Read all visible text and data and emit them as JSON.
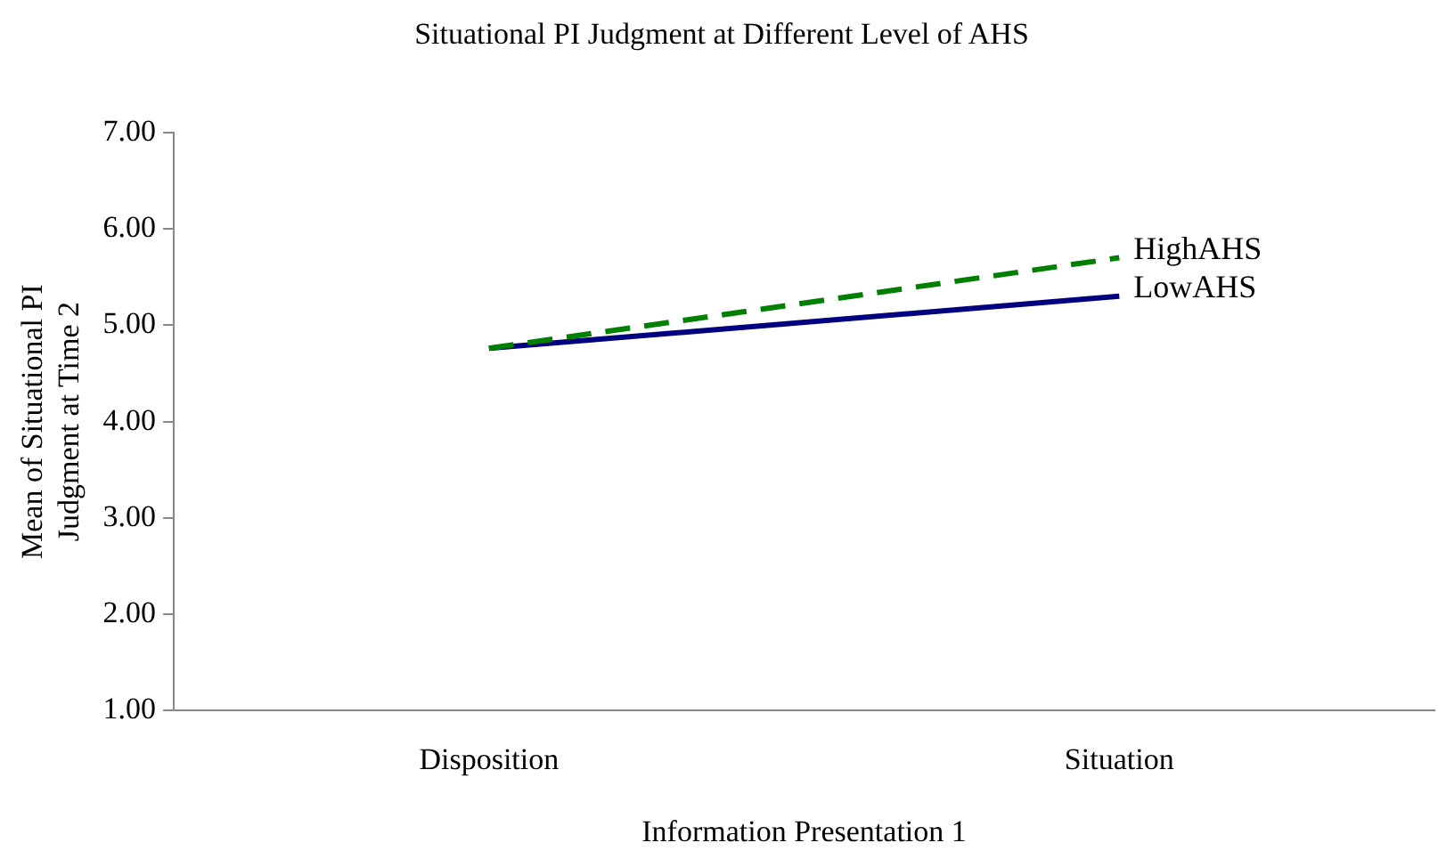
{
  "chart_data": {
    "type": "line",
    "title": "Situational PI Judgment at Different Level of AHS",
    "xlabel": "Information Presentation 1",
    "ylabel": "Mean of Situational PI Judgment at Time 2",
    "categories": [
      "Disposition",
      "Situation"
    ],
    "series": [
      {
        "name": "HighAHS",
        "color": "#008000",
        "values": [
          4.76,
          5.7
        ],
        "line_style": "dashed"
      },
      {
        "name": "LowAHS",
        "color": "#000080",
        "values": [
          4.76,
          5.3
        ],
        "line_style": "solid"
      }
    ],
    "ylim": [
      1,
      7
    ],
    "yticks": [
      {
        "value": 1,
        "label": "1.00"
      },
      {
        "value": 2,
        "label": "2.00"
      },
      {
        "value": 3,
        "label": "3.00"
      },
      {
        "value": 4,
        "label": "4.00"
      },
      {
        "value": 5,
        "label": "5.00"
      },
      {
        "value": 6,
        "label": "6.00"
      },
      {
        "value": 7,
        "label": "7.00"
      }
    ],
    "grid": false,
    "legend": false,
    "marker": "none"
  }
}
